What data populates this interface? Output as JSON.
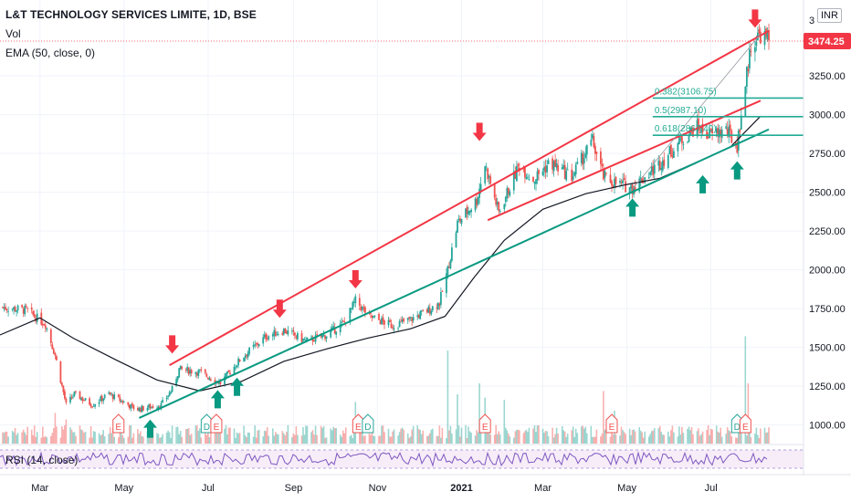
{
  "header": {
    "symbol_title": "L&T TECHNOLOGY SERVICES LIMITE, 1D, BSE",
    "volume_label": "Vol",
    "ema_label": "EMA (50, close, 0)",
    "currency": "INR"
  },
  "rsi": {
    "label": "RSI (14, close)"
  },
  "last_price": {
    "value": 3474.25,
    "label": "3474.25",
    "color": "#f23645"
  },
  "colors": {
    "up": "#26a69a",
    "down": "#ef5350",
    "resistance": "#f23645",
    "support": "#089981",
    "ema": "#131722",
    "rsi": "#7e57c2",
    "fib": "#22ab94"
  },
  "chart_data": {
    "type": "candlestick",
    "y_axis": {
      "min": 880,
      "max": 3680,
      "ticks": [
        1000,
        1250,
        1500,
        1750,
        2000,
        2250,
        2500,
        2750,
        3000,
        3250
      ],
      "tick_labels": [
        "1000.00",
        "1250.00",
        "1500.00",
        "1750.00",
        "2000.00",
        "2250.00",
        "2500.00",
        "2750.00",
        "3000.00",
        "3250.00"
      ],
      "partial_top_label": "3"
    },
    "x_axis": {
      "start": "2020-02-01",
      "end": "2021-08-12",
      "labels": [
        {
          "text": "Mar",
          "date": "2020-03-01"
        },
        {
          "text": "May",
          "date": "2020-05-01"
        },
        {
          "text": "Jul",
          "date": "2020-07-01"
        },
        {
          "text": "Sep",
          "date": "2020-09-01"
        },
        {
          "text": "Nov",
          "date": "2020-11-01"
        },
        {
          "text": "2021",
          "date": "2021-01-01"
        },
        {
          "text": "Mar",
          "date": "2021-03-01"
        },
        {
          "text": "May",
          "date": "2021-05-01"
        },
        {
          "text": "Jul",
          "date": "2021-07-01"
        }
      ]
    },
    "price_path": [
      [
        "2020-02-01",
        1760
      ],
      [
        "2020-02-20",
        1740
      ],
      [
        "2020-03-05",
        1650
      ],
      [
        "2020-03-12",
        1450
      ],
      [
        "2020-03-20",
        1130
      ],
      [
        "2020-03-26",
        1200
      ],
      [
        "2020-04-08",
        1130
      ],
      [
        "2020-04-20",
        1200
      ],
      [
        "2020-05-10",
        1100
      ],
      [
        "2020-05-28",
        1130
      ],
      [
        "2020-06-05",
        1230
      ],
      [
        "2020-06-10",
        1360
      ],
      [
        "2020-06-25",
        1340
      ],
      [
        "2020-07-10",
        1270
      ],
      [
        "2020-07-25",
        1430
      ],
      [
        "2020-08-12",
        1570
      ],
      [
        "2020-08-25",
        1610
      ],
      [
        "2020-09-10",
        1540
      ],
      [
        "2020-09-25",
        1580
      ],
      [
        "2020-10-08",
        1660
      ],
      [
        "2020-10-16",
        1800
      ],
      [
        "2020-10-26",
        1700
      ],
      [
        "2020-11-12",
        1640
      ],
      [
        "2020-11-25",
        1680
      ],
      [
        "2020-12-08",
        1740
      ],
      [
        "2020-12-16",
        1790
      ],
      [
        "2020-12-22",
        2000
      ],
      [
        "2020-12-29",
        2300
      ],
      [
        "2021-01-12",
        2450
      ],
      [
        "2021-01-18",
        2680
      ],
      [
        "2021-01-28",
        2370
      ],
      [
        "2021-02-12",
        2680
      ],
      [
        "2021-02-22",
        2580
      ],
      [
        "2021-03-06",
        2690
      ],
      [
        "2021-03-22",
        2600
      ],
      [
        "2021-04-06",
        2830
      ],
      [
        "2021-04-14",
        2600
      ],
      [
        "2021-04-22",
        2560
      ],
      [
        "2021-05-05",
        2530
      ],
      [
        "2021-05-22",
        2660
      ],
      [
        "2021-06-08",
        2820
      ],
      [
        "2021-06-20",
        2920
      ],
      [
        "2021-06-30",
        2870
      ],
      [
        "2021-07-12",
        2900
      ],
      [
        "2021-07-20",
        2800
      ],
      [
        "2021-07-26",
        3200
      ],
      [
        "2021-07-30",
        3450
      ],
      [
        "2021-08-06",
        3520
      ],
      [
        "2021-08-12",
        3474.25
      ]
    ],
    "ema_path": [
      [
        "2020-02-01",
        1580
      ],
      [
        "2020-03-01",
        1690
      ],
      [
        "2020-03-25",
        1560
      ],
      [
        "2020-04-25",
        1420
      ],
      [
        "2020-05-25",
        1290
      ],
      [
        "2020-06-25",
        1220
      ],
      [
        "2020-07-25",
        1280
      ],
      [
        "2020-08-25",
        1410
      ],
      [
        "2020-09-25",
        1490
      ],
      [
        "2020-10-25",
        1560
      ],
      [
        "2020-11-25",
        1620
      ],
      [
        "2020-12-20",
        1700
      ],
      [
        "2021-01-10",
        1950
      ],
      [
        "2021-02-01",
        2190
      ],
      [
        "2021-03-01",
        2390
      ],
      [
        "2021-04-01",
        2490
      ],
      [
        "2021-05-01",
        2550
      ],
      [
        "2021-05-25",
        2590
      ],
      [
        "2021-06-25",
        2710
      ],
      [
        "2021-07-15",
        2790
      ],
      [
        "2021-08-06",
        2990
      ]
    ],
    "volume_spikes": [
      [
        "2020-03-12",
        0.28
      ],
      [
        "2020-03-20",
        0.22
      ],
      [
        "2020-10-16",
        0.38
      ],
      [
        "2020-12-22",
        0.85
      ],
      [
        "2020-12-29",
        0.45
      ],
      [
        "2021-01-14",
        0.55
      ],
      [
        "2021-01-18",
        0.42
      ],
      [
        "2021-02-01",
        0.4
      ],
      [
        "2021-04-14",
        0.48
      ],
      [
        "2021-04-22",
        0.3
      ],
      [
        "2021-07-26",
        0.98
      ],
      [
        "2021-07-28",
        0.55
      ]
    ],
    "lines": [
      {
        "name": "upper channel",
        "role": "resistance",
        "from": [
          "2020-06-03",
          1385
        ],
        "to": [
          "2021-08-12",
          3540
        ]
      },
      {
        "name": "middle channel",
        "role": "resistance",
        "from": [
          "2021-01-20",
          2320
        ],
        "to": [
          "2021-08-06",
          3090
        ]
      },
      {
        "name": "lower channel",
        "role": "support",
        "from": [
          "2020-05-12",
          1045
        ],
        "to": [
          "2021-08-12",
          2905
        ]
      },
      {
        "name": "diagonal",
        "role": "neutral",
        "from": [
          "2021-05-05",
          2520
        ],
        "to": [
          "2021-08-06",
          3520
        ]
      }
    ],
    "fib_levels": [
      {
        "label": "0.382(3106.75)",
        "value": 3106.75
      },
      {
        "label": "0.5(2987.10)",
        "value": 2987.1
      },
      {
        "label": "0.618(2867.40)",
        "value": 2867.4
      }
    ],
    "fib_from": "2021-07-25",
    "down_arrows": [
      [
        "2020-06-05",
        1460
      ],
      [
        "2020-08-22",
        1690
      ],
      [
        "2020-10-16",
        1880
      ],
      [
        "2021-01-14",
        2830
      ],
      [
        "2021-08-02",
        3560
      ]
    ],
    "up_arrows": [
      [
        "2020-05-20",
        1035
      ],
      [
        "2020-07-08",
        1225
      ],
      [
        "2020-07-22",
        1305
      ],
      [
        "2021-05-05",
        2460
      ],
      [
        "2021-06-25",
        2610
      ],
      [
        "2021-07-20",
        2700
      ]
    ],
    "event_markers": [
      {
        "label": "E",
        "date": "2020-04-27",
        "kind": "earnings"
      },
      {
        "label": "D",
        "date": "2020-06-30",
        "kind": "dividend"
      },
      {
        "label": "E",
        "date": "2020-07-07",
        "kind": "earnings"
      },
      {
        "label": "E",
        "date": "2020-10-18",
        "kind": "earnings"
      },
      {
        "label": "D",
        "date": "2020-10-25",
        "kind": "dividend"
      },
      {
        "label": "E",
        "date": "2021-01-18",
        "kind": "earnings"
      },
      {
        "label": "E",
        "date": "2021-04-20",
        "kind": "earnings"
      },
      {
        "label": "D",
        "date": "2021-07-20",
        "kind": "dividend"
      },
      {
        "label": "E",
        "date": "2021-07-26",
        "kind": "earnings"
      }
    ]
  }
}
